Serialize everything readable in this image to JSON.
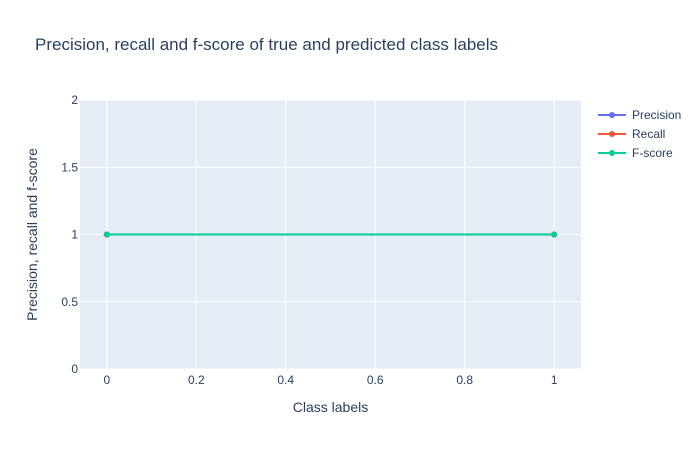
{
  "chart_data": {
    "type": "line",
    "title": "Precision, recall and f-score of true and predicted class labels",
    "xlabel": "Class labels",
    "ylabel": "Precision, recall and f-score",
    "x": [
      0,
      1
    ],
    "xlim": [
      -0.06,
      1.06
    ],
    "ylim": [
      0,
      2
    ],
    "xticks": [
      0,
      0.2,
      0.4,
      0.6,
      0.8,
      1
    ],
    "xtick_labels": [
      "0",
      "0.2",
      "0.4",
      "0.6",
      "0.8",
      "1"
    ],
    "yticks": [
      0,
      0.5,
      1,
      1.5,
      2
    ],
    "ytick_labels": [
      "0",
      "0.5",
      "1",
      "1.5",
      "2"
    ],
    "grid": true,
    "legend_position": "top-right",
    "series": [
      {
        "name": "Precision",
        "values": [
          1,
          1
        ],
        "color": "#636efa"
      },
      {
        "name": "Recall",
        "values": [
          1,
          1
        ],
        "color": "#ef553b"
      },
      {
        "name": "F-score",
        "values": [
          1,
          1
        ],
        "color": "#00cc96"
      }
    ]
  }
}
